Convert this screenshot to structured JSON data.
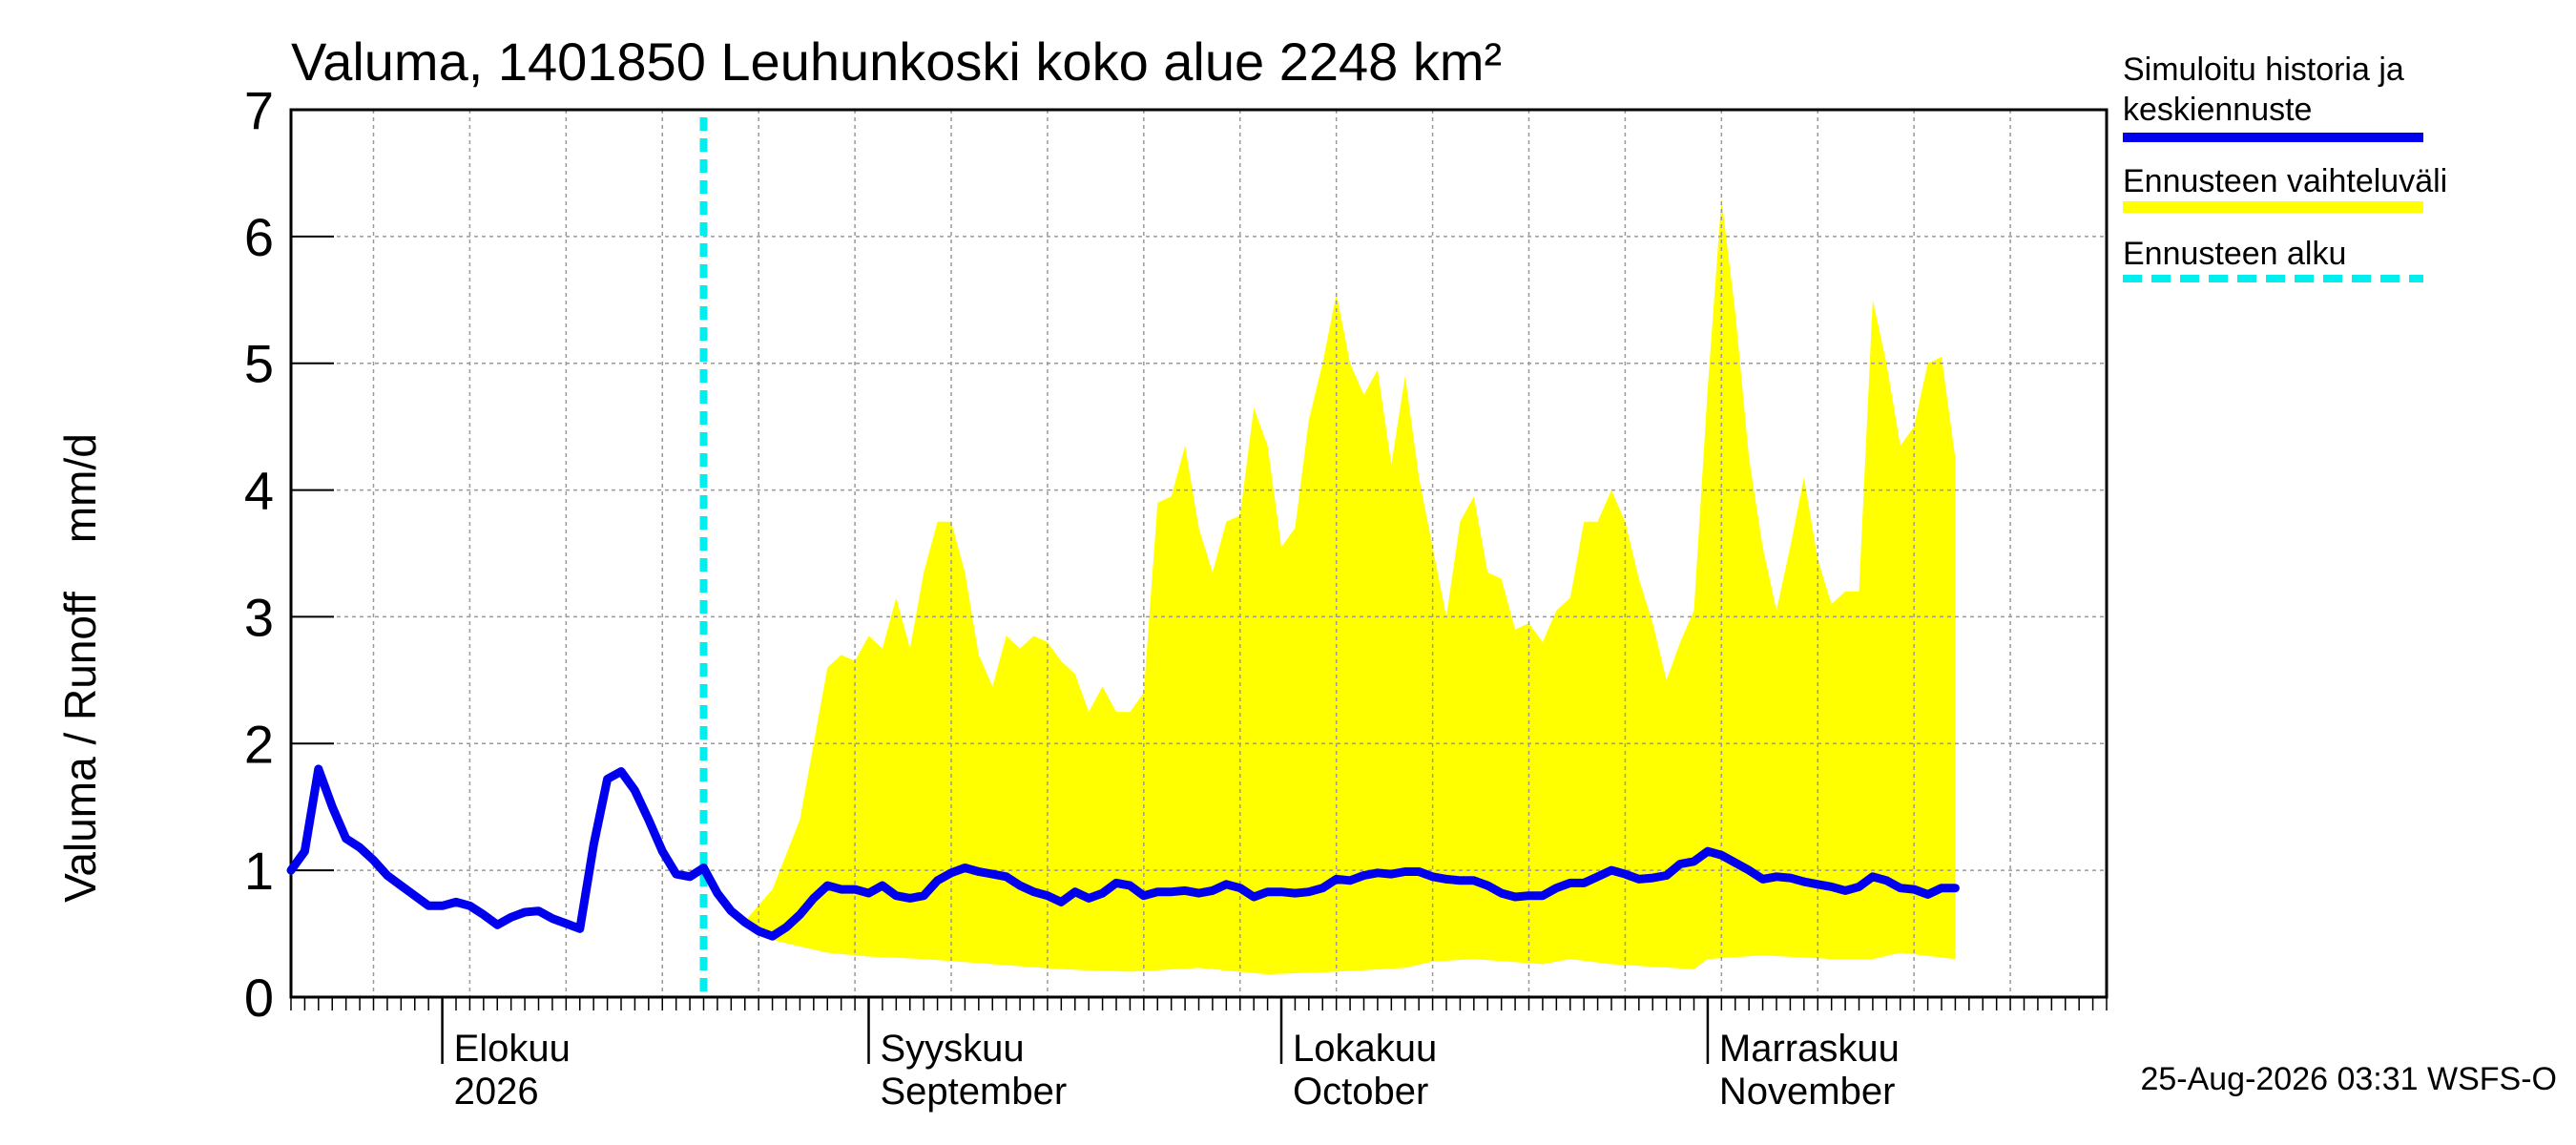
{
  "chart_data": {
    "type": "area",
    "title": "Valuma, 1401850 Leuhunkoski koko alue 2248 km²",
    "ylabel": "Valuma / Runoff    mm/d",
    "ylim": [
      0,
      7
    ],
    "yticks": [
      "0",
      "1",
      "2",
      "3",
      "4",
      "5",
      "6",
      "7"
    ],
    "x_start": "2026-07-21",
    "x_end": "2026-11-30",
    "forecast_start": "2026-08-20",
    "grid": true,
    "legend_position": "top-right outside",
    "month_labels": [
      {
        "date": "2026-08-01",
        "line1": "Elokuu",
        "line2": "2026"
      },
      {
        "date": "2026-09-01",
        "line1": "Syyskuu",
        "line2": "September"
      },
      {
        "date": "2026-10-01",
        "line1": "Lokakuu",
        "line2": "October"
      },
      {
        "date": "2026-11-01",
        "line1": "Marraskuu",
        "line2": "November"
      }
    ],
    "legend": {
      "history": [
        "Simuloitu historia ja",
        "keskiennuste"
      ],
      "range": "Ennusteen vaihteluväli",
      "forecast_start": "Ennusteen alku"
    },
    "timestamp": "25-Aug-2026 03:31 WSFS-O",
    "colors": {
      "history": "#0000ee",
      "range": "#ffff00",
      "forecast_start": "#00eeee",
      "grid": "#999999"
    },
    "series": [
      {
        "name": "Simuloitu historia ja keskiennuste",
        "points": [
          [
            "2026-07-21",
            1.0
          ],
          [
            "2026-07-22",
            1.15
          ],
          [
            "2026-07-23",
            1.8
          ],
          [
            "2026-07-24",
            1.5
          ],
          [
            "2026-07-25",
            1.25
          ],
          [
            "2026-07-26",
            1.18
          ],
          [
            "2026-07-27",
            1.08
          ],
          [
            "2026-07-28",
            0.96
          ],
          [
            "2026-07-29",
            0.88
          ],
          [
            "2026-07-30",
            0.8
          ],
          [
            "2026-07-31",
            0.72
          ],
          [
            "2026-08-01",
            0.72
          ],
          [
            "2026-08-02",
            0.75
          ],
          [
            "2026-08-03",
            0.72
          ],
          [
            "2026-08-04",
            0.65
          ],
          [
            "2026-08-05",
            0.57
          ],
          [
            "2026-08-06",
            0.63
          ],
          [
            "2026-08-07",
            0.67
          ],
          [
            "2026-08-08",
            0.68
          ],
          [
            "2026-08-09",
            0.62
          ],
          [
            "2026-08-10",
            0.58
          ],
          [
            "2026-08-11",
            0.54
          ],
          [
            "2026-08-12",
            1.2
          ],
          [
            "2026-08-13",
            1.72
          ],
          [
            "2026-08-14",
            1.78
          ],
          [
            "2026-08-15",
            1.63
          ],
          [
            "2026-08-16",
            1.4
          ],
          [
            "2026-08-17",
            1.15
          ],
          [
            "2026-08-18",
            0.97
          ],
          [
            "2026-08-19",
            0.95
          ],
          [
            "2026-08-20",
            1.02
          ],
          [
            "2026-08-21",
            0.82
          ],
          [
            "2026-08-22",
            0.68
          ],
          [
            "2026-08-23",
            0.59
          ],
          [
            "2026-08-24",
            0.52
          ],
          [
            "2026-08-25",
            0.48
          ],
          [
            "2026-08-26",
            0.55
          ],
          [
            "2026-08-27",
            0.65
          ],
          [
            "2026-08-28",
            0.78
          ],
          [
            "2026-08-29",
            0.88
          ],
          [
            "2026-08-30",
            0.85
          ],
          [
            "2026-08-31",
            0.85
          ],
          [
            "2026-09-01",
            0.82
          ],
          [
            "2026-09-02",
            0.88
          ],
          [
            "2026-09-03",
            0.8
          ],
          [
            "2026-09-04",
            0.78
          ],
          [
            "2026-09-05",
            0.8
          ],
          [
            "2026-09-06",
            0.92
          ],
          [
            "2026-09-07",
            0.98
          ],
          [
            "2026-09-08",
            1.02
          ],
          [
            "2026-09-09",
            0.99
          ],
          [
            "2026-09-10",
            0.97
          ],
          [
            "2026-09-11",
            0.95
          ],
          [
            "2026-09-12",
            0.88
          ],
          [
            "2026-09-13",
            0.83
          ],
          [
            "2026-09-14",
            0.8
          ],
          [
            "2026-09-15",
            0.75
          ],
          [
            "2026-09-16",
            0.83
          ],
          [
            "2026-09-17",
            0.78
          ],
          [
            "2026-09-18",
            0.82
          ],
          [
            "2026-09-19",
            0.9
          ],
          [
            "2026-09-20",
            0.88
          ],
          [
            "2026-09-21",
            0.8
          ],
          [
            "2026-09-22",
            0.83
          ],
          [
            "2026-09-23",
            0.83
          ],
          [
            "2026-09-24",
            0.84
          ],
          [
            "2026-09-25",
            0.82
          ],
          [
            "2026-09-26",
            0.84
          ],
          [
            "2026-09-27",
            0.89
          ],
          [
            "2026-09-28",
            0.86
          ],
          [
            "2026-09-29",
            0.79
          ],
          [
            "2026-09-30",
            0.83
          ],
          [
            "2026-10-01",
            0.83
          ],
          [
            "2026-10-02",
            0.82
          ],
          [
            "2026-10-03",
            0.83
          ],
          [
            "2026-10-04",
            0.86
          ],
          [
            "2026-10-05",
            0.93
          ],
          [
            "2026-10-06",
            0.92
          ],
          [
            "2026-10-07",
            0.96
          ],
          [
            "2026-10-08",
            0.98
          ],
          [
            "2026-10-09",
            0.97
          ],
          [
            "2026-10-10",
            0.99
          ],
          [
            "2026-10-11",
            0.99
          ],
          [
            "2026-10-12",
            0.95
          ],
          [
            "2026-10-13",
            0.93
          ],
          [
            "2026-10-14",
            0.92
          ],
          [
            "2026-10-15",
            0.92
          ],
          [
            "2026-10-16",
            0.88
          ],
          [
            "2026-10-17",
            0.82
          ],
          [
            "2026-10-18",
            0.79
          ],
          [
            "2026-10-19",
            0.8
          ],
          [
            "2026-10-20",
            0.8
          ],
          [
            "2026-10-21",
            0.86
          ],
          [
            "2026-10-22",
            0.9
          ],
          [
            "2026-10-23",
            0.9
          ],
          [
            "2026-10-24",
            0.95
          ],
          [
            "2026-10-25",
            1.0
          ],
          [
            "2026-10-26",
            0.97
          ],
          [
            "2026-10-27",
            0.93
          ],
          [
            "2026-10-28",
            0.94
          ],
          [
            "2026-10-29",
            0.96
          ],
          [
            "2026-10-30",
            1.05
          ],
          [
            "2026-10-31",
            1.07
          ],
          [
            "2026-11-01",
            1.15
          ],
          [
            "2026-11-02",
            1.12
          ],
          [
            "2026-11-03",
            1.06
          ],
          [
            "2026-11-04",
            1.0
          ],
          [
            "2026-11-05",
            0.93
          ],
          [
            "2026-11-06",
            0.95
          ],
          [
            "2026-11-07",
            0.94
          ],
          [
            "2026-11-08",
            0.91
          ],
          [
            "2026-11-09",
            0.89
          ],
          [
            "2026-11-10",
            0.87
          ],
          [
            "2026-11-11",
            0.84
          ],
          [
            "2026-11-12",
            0.87
          ],
          [
            "2026-11-13",
            0.95
          ],
          [
            "2026-11-14",
            0.92
          ],
          [
            "2026-11-15",
            0.86
          ],
          [
            "2026-11-16",
            0.85
          ],
          [
            "2026-11-17",
            0.81
          ],
          [
            "2026-11-18",
            0.86
          ],
          [
            "2026-11-19",
            0.86
          ]
        ]
      },
      {
        "name": "Ennusteen vaihteluväli",
        "upper": [
          [
            "2026-08-23",
            0.6
          ],
          [
            "2026-08-25",
            0.85
          ],
          [
            "2026-08-27",
            1.4
          ],
          [
            "2026-08-29",
            2.6
          ],
          [
            "2026-08-30",
            2.7
          ],
          [
            "2026-08-31",
            2.65
          ],
          [
            "2026-09-01",
            2.85
          ],
          [
            "2026-09-02",
            2.75
          ],
          [
            "2026-09-03",
            3.15
          ],
          [
            "2026-09-04",
            2.75
          ],
          [
            "2026-09-05",
            3.35
          ],
          [
            "2026-09-06",
            3.75
          ],
          [
            "2026-09-07",
            3.75
          ],
          [
            "2026-09-08",
            3.35
          ],
          [
            "2026-09-09",
            2.7
          ],
          [
            "2026-09-10",
            2.45
          ],
          [
            "2026-09-11",
            2.85
          ],
          [
            "2026-09-12",
            2.75
          ],
          [
            "2026-09-13",
            2.85
          ],
          [
            "2026-09-14",
            2.8
          ],
          [
            "2026-09-15",
            2.65
          ],
          [
            "2026-09-16",
            2.55
          ],
          [
            "2026-09-17",
            2.25
          ],
          [
            "2026-09-18",
            2.45
          ],
          [
            "2026-09-19",
            2.25
          ],
          [
            "2026-09-20",
            2.25
          ],
          [
            "2026-09-21",
            2.4
          ],
          [
            "2026-09-22",
            3.9
          ],
          [
            "2026-09-23",
            3.95
          ],
          [
            "2026-09-24",
            4.35
          ],
          [
            "2026-09-25",
            3.7
          ],
          [
            "2026-09-26",
            3.35
          ],
          [
            "2026-09-27",
            3.75
          ],
          [
            "2026-09-28",
            3.8
          ],
          [
            "2026-09-29",
            4.65
          ],
          [
            "2026-09-30",
            4.35
          ],
          [
            "2026-10-01",
            3.55
          ],
          [
            "2026-10-02",
            3.7
          ],
          [
            "2026-10-03",
            4.55
          ],
          [
            "2026-10-04",
            5.0
          ],
          [
            "2026-10-05",
            5.55
          ],
          [
            "2026-10-06",
            5.0
          ],
          [
            "2026-10-07",
            4.75
          ],
          [
            "2026-10-08",
            4.95
          ],
          [
            "2026-10-09",
            4.2
          ],
          [
            "2026-10-10",
            4.9
          ],
          [
            "2026-10-11",
            4.1
          ],
          [
            "2026-10-12",
            3.55
          ],
          [
            "2026-10-13",
            3.0
          ],
          [
            "2026-10-14",
            3.75
          ],
          [
            "2026-10-15",
            3.95
          ],
          [
            "2026-10-16",
            3.35
          ],
          [
            "2026-10-17",
            3.3
          ],
          [
            "2026-10-18",
            2.9
          ],
          [
            "2026-10-19",
            2.95
          ],
          [
            "2026-10-20",
            2.8
          ],
          [
            "2026-10-21",
            3.05
          ],
          [
            "2026-10-22",
            3.15
          ],
          [
            "2026-10-23",
            3.75
          ],
          [
            "2026-10-24",
            3.75
          ],
          [
            "2026-10-25",
            4.0
          ],
          [
            "2026-10-26",
            3.75
          ],
          [
            "2026-10-27",
            3.3
          ],
          [
            "2026-10-28",
            2.95
          ],
          [
            "2026-10-29",
            2.5
          ],
          [
            "2026-10-30",
            2.8
          ],
          [
            "2026-10-31",
            3.05
          ],
          [
            "2026-11-01",
            4.8
          ],
          [
            "2026-11-02",
            6.3
          ],
          [
            "2026-11-03",
            5.4
          ],
          [
            "2026-11-04",
            4.25
          ],
          [
            "2026-11-05",
            3.55
          ],
          [
            "2026-11-06",
            3.05
          ],
          [
            "2026-11-07",
            3.55
          ],
          [
            "2026-11-08",
            4.1
          ],
          [
            "2026-11-09",
            3.45
          ],
          [
            "2026-11-10",
            3.1
          ],
          [
            "2026-11-11",
            3.2
          ],
          [
            "2026-11-12",
            3.2
          ],
          [
            "2026-11-13",
            5.5
          ],
          [
            "2026-11-14",
            5.0
          ],
          [
            "2026-11-15",
            4.35
          ],
          [
            "2026-11-16",
            4.5
          ],
          [
            "2026-11-17",
            5.0
          ],
          [
            "2026-11-18",
            5.05
          ],
          [
            "2026-11-19",
            4.25
          ]
        ],
        "lower": [
          [
            "2026-08-23",
            0.55
          ],
          [
            "2026-08-25",
            0.45
          ],
          [
            "2026-08-27",
            0.4
          ],
          [
            "2026-08-29",
            0.35
          ],
          [
            "2026-09-01",
            0.32
          ],
          [
            "2026-09-05",
            0.3
          ],
          [
            "2026-09-10",
            0.26
          ],
          [
            "2026-09-15",
            0.22
          ],
          [
            "2026-09-20",
            0.2
          ],
          [
            "2026-09-25",
            0.23
          ],
          [
            "2026-09-30",
            0.18
          ],
          [
            "2026-10-05",
            0.2
          ],
          [
            "2026-10-10",
            0.23
          ],
          [
            "2026-10-12",
            0.28
          ],
          [
            "2026-10-15",
            0.3
          ],
          [
            "2026-10-20",
            0.26
          ],
          [
            "2026-10-22",
            0.3
          ],
          [
            "2026-10-25",
            0.26
          ],
          [
            "2026-10-31",
            0.22
          ],
          [
            "2026-11-01",
            0.3
          ],
          [
            "2026-11-05",
            0.33
          ],
          [
            "2026-11-10",
            0.3
          ],
          [
            "2026-11-13",
            0.3
          ],
          [
            "2026-11-15",
            0.35
          ],
          [
            "2026-11-19",
            0.3
          ]
        ]
      }
    ]
  }
}
